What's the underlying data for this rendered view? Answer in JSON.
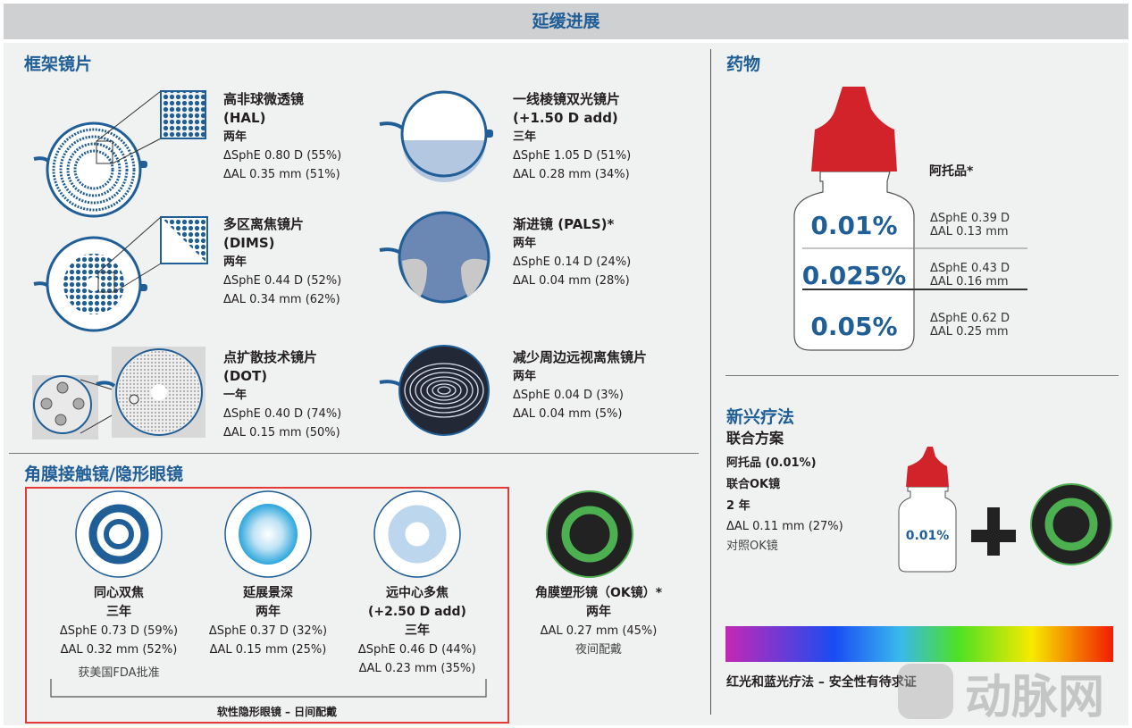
{
  "header": {
    "title": "延缓进展"
  },
  "spectacle": {
    "title": "框架镜片",
    "items": [
      {
        "name": "高非球微透镜",
        "code": "(HAL)",
        "duration": "两年",
        "sphe": "ΔSphE 0.80 D (55%)",
        "al": "ΔAL 0.35 mm (51%)"
      },
      {
        "name": "一线棱镜双光镜片",
        "code": "(+1.50 D add)",
        "duration": "三年",
        "sphe": "ΔSphE 1.05 D (51%)",
        "al": "ΔAL 0.28 mm (34%)"
      },
      {
        "name": "多区离焦镜片",
        "code": "(DIMS)",
        "duration": "两年",
        "sphe": "ΔSphE 0.44 D (52%)",
        "al": "ΔAL 0.34 mm (62%)"
      },
      {
        "name": "渐进镜 (PALS)*",
        "code": "",
        "duration": "两年",
        "sphe": "ΔSphE 0.14 D (24%)",
        "al": "ΔAL 0.04 mm (28%)"
      },
      {
        "name": "点扩散技术镜片",
        "code": "(DOT)",
        "duration": "一年",
        "sphe": "ΔSphE 0.40 D (74%)",
        "al": "ΔAL 0.15 mm (50%)"
      },
      {
        "name": "减少周边远视离焦镜片",
        "code": "",
        "duration": "两年",
        "sphe": "ΔSphE 0.04 D (3%)",
        "al": "ΔAL 0.04 mm (5%)"
      }
    ]
  },
  "contact": {
    "title": "角膜接触镜/隐形眼镜",
    "items": [
      {
        "name": "同心双焦",
        "duration": "三年",
        "sphe": "ΔSphE 0.73 D (59%)",
        "al": "ΔAL 0.32 mm (52%)",
        "note": "获美国FDA批准"
      },
      {
        "name": "延展景深",
        "duration": "两年",
        "sphe": "ΔSphE 0.37 D (32%)",
        "al": "ΔAL 0.15 mm (25%)"
      },
      {
        "name": "远中心多焦",
        "code": "(+2.50 D add)",
        "duration": "三年",
        "sphe": "ΔSphE 0.46 D (44%)",
        "al": "ΔAL 0.23 mm (35%)"
      }
    ],
    "soft_label": "软性隐形眼镜 – 日间配戴",
    "ortho": {
      "name": "角膜塑形镜（OK镜）*",
      "duration": "两年",
      "al": "ΔAL 0.27 mm (45%)",
      "note": "夜间配戴"
    }
  },
  "drug": {
    "title": "药物",
    "name": "阿托品*",
    "doses": [
      {
        "conc": "0.01%",
        "sphe": "ΔSphE 0.39 D",
        "al": "ΔAL 0.13 mm"
      },
      {
        "conc": "0.025%",
        "sphe": "ΔSphE 0.43 D",
        "al": "ΔAL 0.16 mm"
      },
      {
        "conc": "0.05%",
        "sphe": "ΔSphE 0.62 D",
        "al": "ΔAL 0.25 mm"
      }
    ],
    "cap_color": "#d2232a"
  },
  "emerging": {
    "title": "新兴疗法",
    "subtitle": "联合方案",
    "drug": "阿托品 (0.01%)",
    "combo": "联合OK镜",
    "duration": "2 年",
    "al": "ΔAL 0.11 mm (27%)",
    "control": "对照OK镜",
    "bottle_label": "0.01%",
    "light": "红光和蓝光疗法 – 安全性有待求证"
  },
  "watermark": "动脉网",
  "colors": {
    "title": "#1f5e96",
    "highlight_box": "#e53935",
    "ok_ring": "#4caf50"
  }
}
